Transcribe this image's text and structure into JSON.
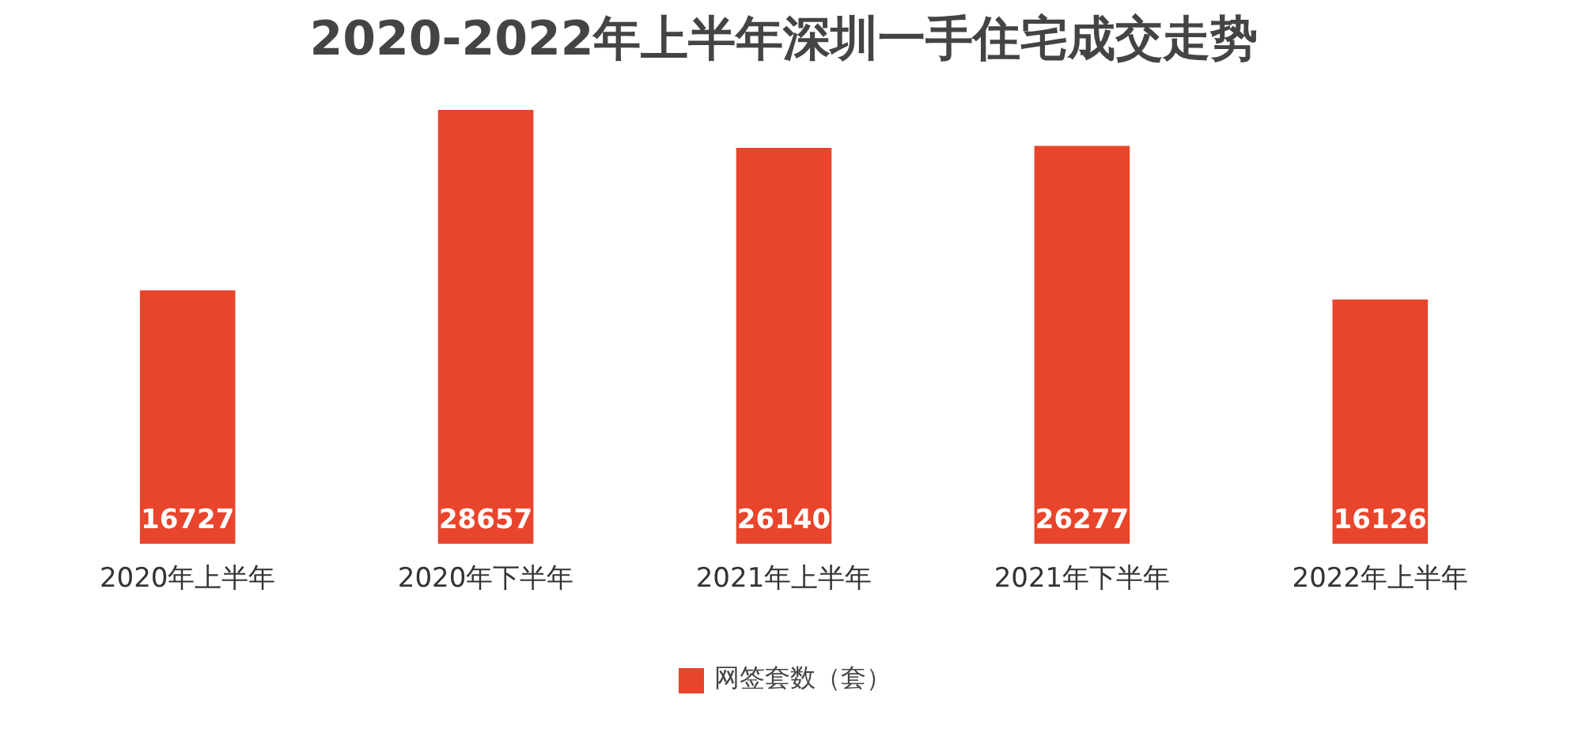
{
  "chart_data": {
    "type": "bar",
    "title": "2020-2022年上半年深圳一手住宅成交走势",
    "categories": [
      "2020年上半年",
      "2020年下半年",
      "2021年上半年",
      "2021年下半年",
      "2022年上半年"
    ],
    "series": [
      {
        "name": "网签套数（套）",
        "color": "#e8452c",
        "values": [
          16727,
          28657,
          26140,
          26277,
          16126
        ]
      }
    ],
    "data_labels": true,
    "legend": "bottom",
    "grid": false
  }
}
